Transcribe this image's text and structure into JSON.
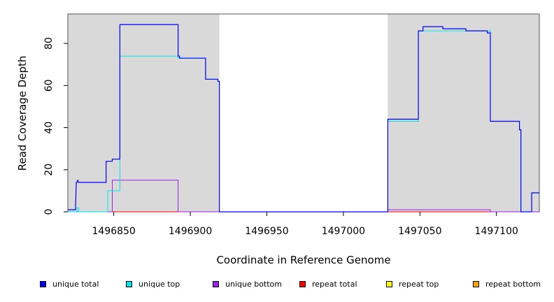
{
  "chart_data": {
    "type": "line",
    "xlabel": "Coordinate in Reference Genome",
    "ylabel": "Read Coverage Depth",
    "xlim": [
      1496820,
      1497128
    ],
    "ylim": [
      0,
      94
    ],
    "xticks": [
      1496850,
      1496900,
      1496950,
      1497000,
      1497050,
      1497100
    ],
    "xtick_labels": [
      "1496850",
      "1496900",
      "1496950",
      "1497000",
      "1497050",
      "1497100"
    ],
    "yticks": [
      0,
      20,
      40,
      60,
      80
    ],
    "ytick_labels": [
      "0",
      "20",
      "40",
      "60",
      "80"
    ],
    "shaded_regions": [
      [
        1496820,
        1496919
      ],
      [
        1497029,
        1497128
      ]
    ],
    "grid": false,
    "legend_position": "bottom",
    "series": [
      {
        "name": "unique total",
        "color": "#0000ff",
        "x": [
          1496820,
          1496825,
          1496825.5,
          1496826,
          1496826.5,
          1496827,
          1496845,
          1496845,
          1496849,
          1496849,
          1496854,
          1496854,
          1496892,
          1496892,
          1496893,
          1496893,
          1496910,
          1496910,
          1496918,
          1496918,
          1496919,
          1496919,
          1497029,
          1497029,
          1497049,
          1497049,
          1497052,
          1497052,
          1497065,
          1497065,
          1497080,
          1497080,
          1497094,
          1497094,
          1497096,
          1497096,
          1497115,
          1497115,
          1497116,
          1497116,
          1497123,
          1497123,
          1497128
        ],
        "y": [
          1,
          1,
          14,
          14,
          15,
          14,
          14,
          24,
          24,
          25,
          25,
          89,
          89,
          74,
          74,
          73,
          73,
          63,
          63,
          62,
          62,
          0,
          0,
          44,
          44,
          86,
          86,
          88,
          88,
          87,
          87,
          86,
          86,
          85,
          85,
          43,
          43,
          39,
          39,
          0,
          0,
          9,
          9
        ]
      },
      {
        "name": "unique top",
        "color": "#00e5ee",
        "x": [
          1496820,
          1496826,
          1496826,
          1496827,
          1496827,
          1496846,
          1496846,
          1496854,
          1496854,
          1496892,
          1496892,
          1496910,
          1496910,
          1496918,
          1496918,
          1496919,
          1496919,
          1497029,
          1497029,
          1497049,
          1497049,
          1497096,
          1497096,
          1497115,
          1497115,
          1497116,
          1497116,
          1497123,
          1497123,
          1497128
        ],
        "y": [
          0,
          0,
          2,
          2,
          0,
          0,
          10,
          10,
          74,
          74,
          73,
          73,
          63,
          63,
          62,
          62,
          0,
          0,
          43,
          43,
          86,
          86,
          43,
          43,
          39,
          39,
          0,
          0,
          9,
          9
        ]
      },
      {
        "name": "unique bottom",
        "color": "#a020f0",
        "x": [
          1496820,
          1496849,
          1496849,
          1496892,
          1496892,
          1497029,
          1497029,
          1497096,
          1497096,
          1497128
        ],
        "y": [
          0,
          0,
          15,
          15,
          0,
          0,
          1,
          1,
          0,
          0
        ]
      },
      {
        "name": "repeat total",
        "color": "#ff0000",
        "x": [
          1496820,
          1497128
        ],
        "y": [
          0,
          0
        ]
      },
      {
        "name": "repeat top",
        "color": "#ffff00",
        "x": [
          1496820,
          1497128
        ],
        "y": [
          0,
          0
        ]
      },
      {
        "name": "repeat bottom",
        "color": "#ffa500",
        "x": [
          1496820,
          1497128
        ],
        "y": [
          0,
          0
        ]
      }
    ]
  }
}
